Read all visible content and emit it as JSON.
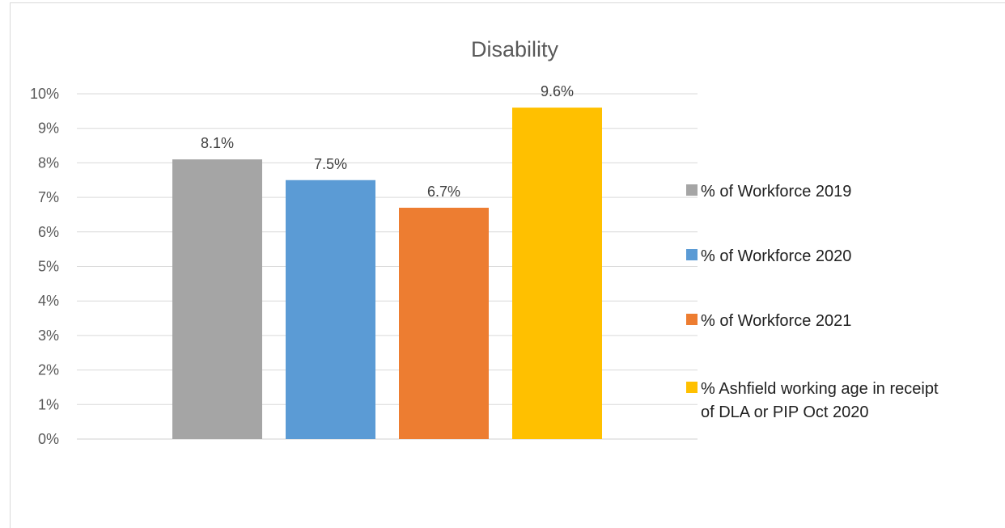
{
  "chart_data": {
    "type": "bar",
    "title": "Disability",
    "xlabel": "",
    "ylabel": "",
    "ylim": [
      0,
      0.1
    ],
    "yticks": [
      "0%",
      "1%",
      "2%",
      "3%",
      "4%",
      "5%",
      "6%",
      "7%",
      "8%",
      "9%",
      "10%"
    ],
    "grid": true,
    "legend_position": "right",
    "series": [
      {
        "name": "% of Workforce 2019",
        "value": 0.081,
        "label": "8.1%",
        "color": "#a5a5a5",
        "legend_lines": [
          "% of Workforce 2019"
        ]
      },
      {
        "name": "% of Workforce 2020",
        "value": 0.075,
        "label": "7.5%",
        "color": "#5b9bd5",
        "legend_lines": [
          "% of Workforce 2020"
        ]
      },
      {
        "name": "% of Workforce 2021",
        "value": 0.067,
        "label": "6.7%",
        "color": "#ed7d31",
        "legend_lines": [
          "% of Workforce 2021"
        ]
      },
      {
        "name": "% Ashfield working age in receipt of DLA or PIP Oct 2020",
        "value": 0.096,
        "label": "9.6%",
        "color": "#ffc000",
        "legend_lines": [
          "% Ashfield working age in receipt",
          "of DLA or PIP Oct 2020"
        ]
      }
    ]
  }
}
